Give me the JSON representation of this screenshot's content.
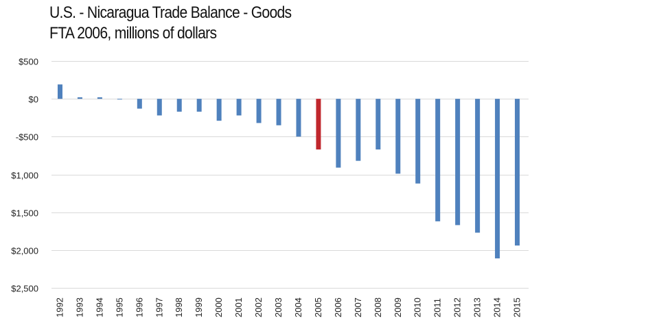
{
  "chart_data": {
    "type": "bar",
    "title": "U.S. - Nicaragua Trade Balance - Goods",
    "subtitle": "FTA 2006, millions of dollars",
    "xlabel": "",
    "ylabel": "",
    "ylim": [
      -2500,
      500
    ],
    "grid": true,
    "y_ticks": [
      500,
      0,
      -500,
      -1000,
      -1500,
      -2000,
      -2500
    ],
    "y_tick_labels": [
      "$500",
      "$0",
      "-$500",
      "$1,000",
      "$1,500",
      "$2,000",
      "$2,500"
    ],
    "categories": [
      "1992",
      "1993",
      "1994",
      "1995",
      "1996",
      "1997",
      "1998",
      "1999",
      "2000",
      "2001",
      "2002",
      "2003",
      "2004",
      "2005",
      "2006",
      "2007",
      "2008",
      "2009",
      "2010",
      "2011",
      "2012",
      "2013",
      "2014",
      "2015"
    ],
    "values": [
      190,
      20,
      20,
      -5,
      -130,
      -220,
      -170,
      -170,
      -290,
      -220,
      -320,
      -350,
      -500,
      -670,
      -910,
      -820,
      -670,
      -990,
      -1120,
      -1620,
      -1670,
      -1770,
      -2110,
      -1940
    ],
    "highlight": [
      "2005"
    ],
    "colors": {
      "bar": "#4f81bd",
      "highlight": "#c0272d",
      "grid": "#d9d9d9",
      "text": "#222222"
    }
  }
}
